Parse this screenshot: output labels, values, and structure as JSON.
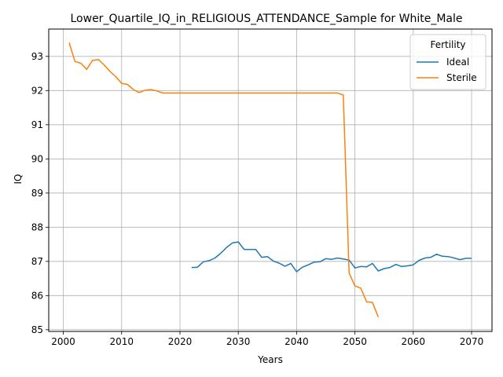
{
  "chart_data": {
    "type": "line",
    "title": "Lower_Quartile_IQ_in_RELIGIOUS_ATTENDANCE_Sample for White_Male",
    "xlabel": "Years",
    "ylabel": "IQ",
    "xlim": [
      1997.5,
      2073.5
    ],
    "ylim": [
      84.95,
      93.8
    ],
    "xticks": [
      2000,
      2010,
      2020,
      2030,
      2040,
      2050,
      2060,
      2070
    ],
    "yticks": [
      85,
      86,
      87,
      88,
      89,
      90,
      91,
      92,
      93
    ],
    "grid": true,
    "legend": {
      "title": "Fertility",
      "placement": "top-right"
    },
    "series": [
      {
        "name": "Ideal",
        "color": "#1f77b4",
        "x": [
          2022,
          2023,
          2024,
          2025,
          2026,
          2027,
          2028,
          2029,
          2030,
          2031,
          2032,
          2033,
          2034,
          2035,
          2036,
          2037,
          2038,
          2039,
          2040,
          2041,
          2042,
          2043,
          2044,
          2045,
          2046,
          2047,
          2048,
          2049,
          2050,
          2051,
          2052,
          2053,
          2054,
          2055,
          2056,
          2057,
          2058,
          2059,
          2060,
          2061,
          2062,
          2063,
          2064,
          2065,
          2066,
          2067,
          2068,
          2069,
          2070
        ],
        "y": [
          86.82,
          86.83,
          86.99,
          87.02,
          87.1,
          87.24,
          87.41,
          87.54,
          87.57,
          87.35,
          87.35,
          87.35,
          87.12,
          87.14,
          87.01,
          86.95,
          86.86,
          86.94,
          86.7,
          86.83,
          86.9,
          86.98,
          86.99,
          87.08,
          87.06,
          87.1,
          87.07,
          87.04,
          86.81,
          86.85,
          86.84,
          86.94,
          86.72,
          86.79,
          86.82,
          86.91,
          86.85,
          86.87,
          86.9,
          87.03,
          87.1,
          87.12,
          87.21,
          87.15,
          87.14,
          87.1,
          87.05,
          87.09,
          87.09
        ]
      },
      {
        "name": "Sterile",
        "color": "#ff7f0e",
        "x": [
          2001,
          2002,
          2003,
          2004,
          2005,
          2006,
          2007,
          2008,
          2009,
          2010,
          2011,
          2012,
          2013,
          2014,
          2015,
          2016,
          2017,
          2018,
          2019,
          2020,
          2021,
          2022,
          2023,
          2024,
          2025,
          2026,
          2027,
          2028,
          2029,
          2030,
          2031,
          2032,
          2033,
          2034,
          2035,
          2036,
          2037,
          2038,
          2039,
          2040,
          2041,
          2042,
          2043,
          2044,
          2045,
          2046,
          2047,
          2048,
          2049,
          2050,
          2051,
          2052,
          2053,
          2054
        ],
        "y": [
          93.4,
          92.85,
          92.8,
          92.62,
          92.88,
          92.91,
          92.75,
          92.56,
          92.41,
          92.21,
          92.18,
          92.03,
          91.94,
          92.01,
          92.03,
          91.99,
          91.93,
          91.93,
          91.93,
          91.93,
          91.93,
          91.93,
          91.93,
          91.93,
          91.93,
          91.93,
          91.93,
          91.93,
          91.93,
          91.93,
          91.93,
          91.93,
          91.93,
          91.93,
          91.93,
          91.93,
          91.93,
          91.93,
          91.93,
          91.93,
          91.93,
          91.93,
          91.93,
          91.93,
          91.93,
          91.93,
          91.93,
          91.87,
          86.66,
          86.28,
          86.22,
          85.82,
          85.8,
          85.37
        ]
      }
    ]
  }
}
